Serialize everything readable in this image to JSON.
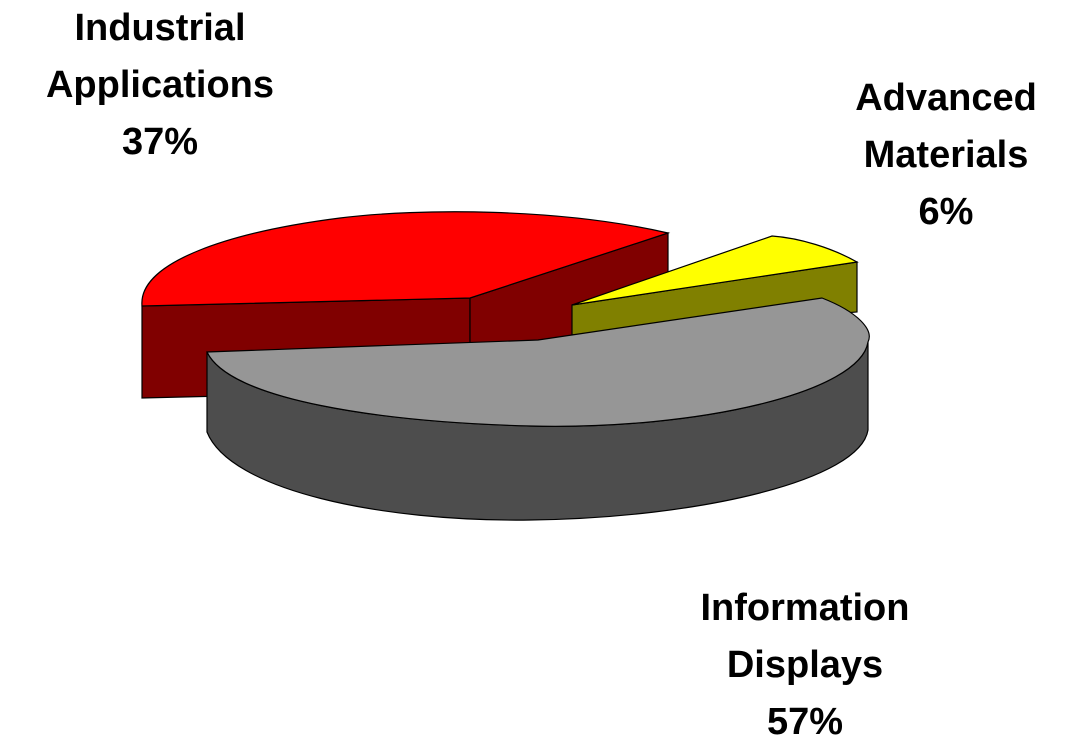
{
  "chart_data": {
    "type": "pie",
    "style": "3d-exploded",
    "slices": [
      {
        "category_lines": [
          "Industrial",
          "Applications"
        ],
        "value": 37,
        "value_label": "37%",
        "top_color": "#ff0000",
        "side_color": "#800000"
      },
      {
        "category_lines": [
          "Advanced",
          "Materials"
        ],
        "value": 6,
        "value_label": "6%",
        "top_color": "#ffff00",
        "side_color": "#808000"
      },
      {
        "category_lines": [
          "Information",
          "Displays"
        ],
        "value": 57,
        "value_label": "57%",
        "top_color": "#969696",
        "side_color": "#4d4d4d"
      }
    ],
    "legend": "none",
    "title": ""
  }
}
